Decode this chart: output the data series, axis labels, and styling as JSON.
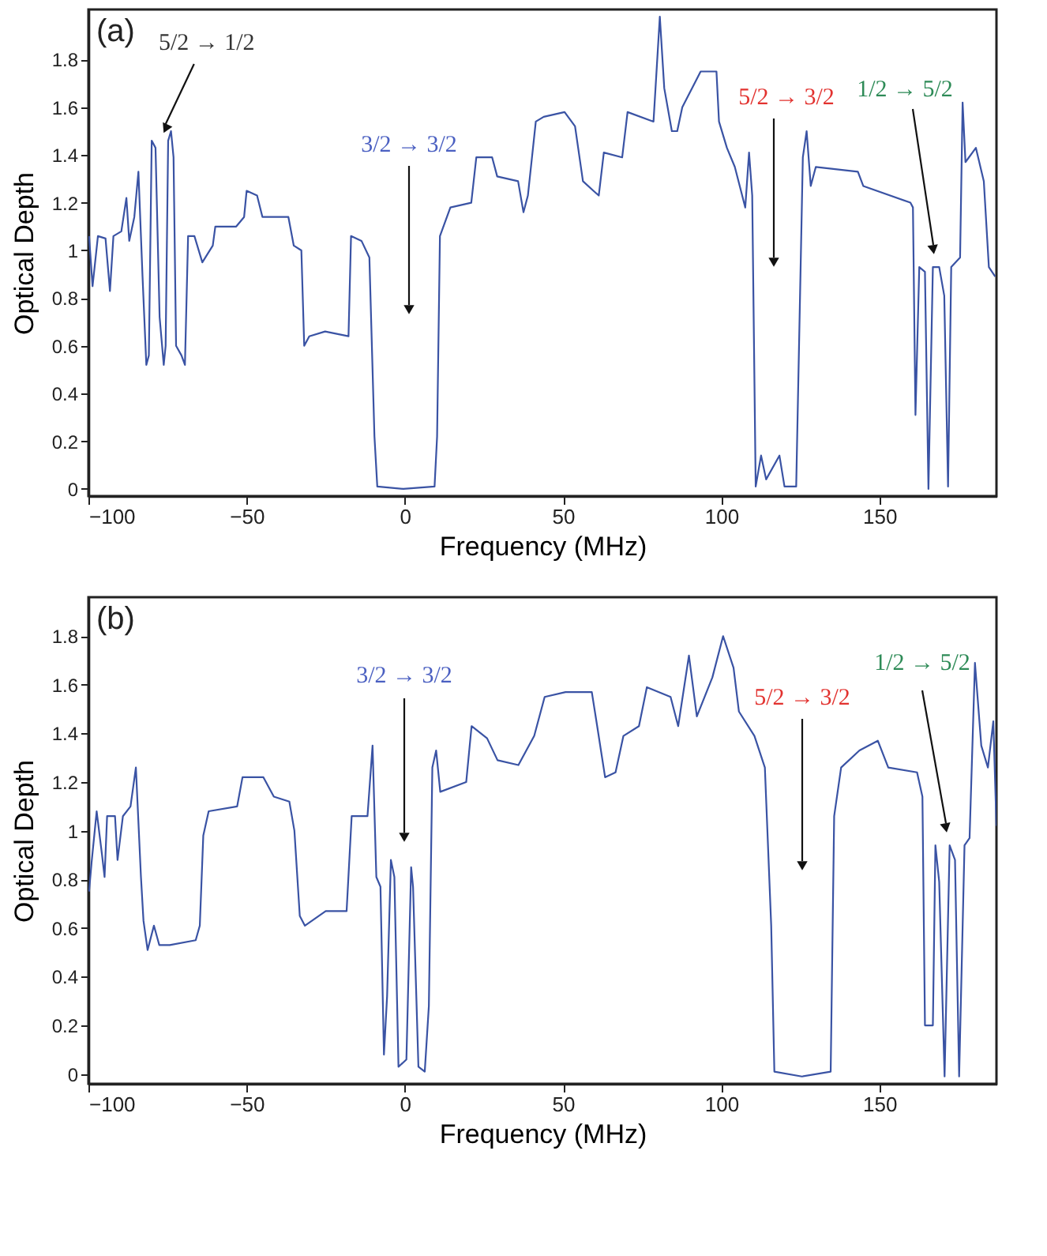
{
  "chart_data": [
    {
      "type": "line",
      "xlabel": "Frequency (MHz)",
      "ylabel": "Optical Depth",
      "xlim": [
        -100,
        187
      ],
      "ylim": [
        -0.03,
        2.01
      ],
      "xticks": [
        -100,
        -50,
        0,
        50,
        100,
        150
      ],
      "yticks": [
        0,
        0.2,
        0.4,
        0.6,
        0.8,
        1,
        1.2,
        1.4,
        1.6,
        1.8
      ],
      "grid": false,
      "x": [
        -99.8,
        -98.7,
        -97.0,
        -94.6,
        -93.2,
        -92.1,
        -89.6,
        -88.0,
        -87.1,
        -85.5,
        -84.2,
        -82.9,
        -81.7,
        -80.9,
        -80.0,
        -78.8,
        -77.5,
        -76.2,
        -75.6,
        -74.8,
        -73.9,
        -73.1,
        -72.3,
        -70.6,
        -69.5,
        -68.5,
        -66.5,
        -64.0,
        -60.7,
        -59.9,
        -53.3,
        -50.8,
        -50.0,
        -46.7,
        -45.0,
        -36.8,
        -35.1,
        -32.7,
        -31.8,
        -30.2,
        -25.2,
        -17.8,
        -17.0,
        -13.7,
        -11.2,
        -9.6,
        -8.7,
        -0.5,
        9.4,
        10.2,
        11.1,
        14.4,
        21.0,
        22.6,
        27.6,
        29.2,
        35.8,
        37.5,
        38.9,
        41.4,
        43.9,
        50.5,
        53.8,
        56.3,
        59.6,
        61.3,
        62.9,
        68.7,
        70.4,
        78.6,
        80.6,
        82.0,
        84.4,
        86.1,
        87.7,
        93.5,
        98.5,
        99.3,
        101.8,
        104.3,
        107.6,
        108.8,
        109.8,
        110.9,
        112.6,
        114.2,
        118.4,
        120.0,
        123.7,
        125.8,
        127.0,
        128.3,
        129.9,
        143.2,
        144.9,
        159.8,
        160.6,
        161.4,
        162.6,
        164.4,
        165.5,
        166.9,
        168.9,
        170.5,
        171.7,
        172.7,
        175.5,
        176.3,
        177.2,
        180.5,
        183.0,
        184.6,
        186.6
      ],
      "series": [
        {
          "color": "#3a53a4",
          "values": [
            1.06,
            0.85,
            1.06,
            1.05,
            0.83,
            1.06,
            1.08,
            1.22,
            1.04,
            1.14,
            1.33,
            0.89,
            0.52,
            0.56,
            1.46,
            1.43,
            0.72,
            0.52,
            0.6,
            1.46,
            1.5,
            1.39,
            0.6,
            0.56,
            0.52,
            1.06,
            1.06,
            0.95,
            1.02,
            1.1,
            1.1,
            1.14,
            1.25,
            1.23,
            1.14,
            1.14,
            1.02,
            1.0,
            0.6,
            0.64,
            0.66,
            0.64,
            1.06,
            1.04,
            0.97,
            0.22,
            0.01,
            0.0,
            0.01,
            0.22,
            1.06,
            1.18,
            1.2,
            1.39,
            1.39,
            1.31,
            1.29,
            1.16,
            1.23,
            1.54,
            1.56,
            1.58,
            1.52,
            1.29,
            1.25,
            1.23,
            1.41,
            1.39,
            1.58,
            1.54,
            1.98,
            1.68,
            1.5,
            1.5,
            1.6,
            1.75,
            1.75,
            1.54,
            1.43,
            1.35,
            1.18,
            1.41,
            1.23,
            0.01,
            0.14,
            0.04,
            0.14,
            0.01,
            0.01,
            1.39,
            1.5,
            1.27,
            1.35,
            1.33,
            1.27,
            1.2,
            1.18,
            0.31,
            0.93,
            0.91,
            0.0,
            0.93,
            0.93,
            0.81,
            0.01,
            0.93,
            0.97,
            1.62,
            1.37,
            1.43,
            1.29,
            0.93,
            0.89
          ]
        }
      ],
      "annotations": [
        "(a)",
        {
          "text": "5/2 → 1/2",
          "x": -75.6,
          "y": 1.53
        },
        "3/2 → 3/2",
        "5/2 → 3/2",
        "1/2 → 5/2"
      ]
    },
    {
      "type": "line",
      "xlabel": "Frequency (MHz)",
      "ylabel": "Optical Depth",
      "xlim": [
        -100,
        187
      ],
      "ylim": [
        -0.04,
        1.96
      ],
      "xticks": [
        -100,
        -50,
        0,
        50,
        100,
        150
      ],
      "yticks": [
        0,
        0.2,
        0.4,
        0.6,
        0.8,
        1,
        1.2,
        1.4,
        1.6,
        1.8
      ],
      "grid": false,
      "x": [
        -99.8,
        -99.0,
        -97.4,
        -95.7,
        -94.9,
        -94.1,
        -91.6,
        -90.8,
        -89.1,
        -86.7,
        -85.0,
        -83.4,
        -82.6,
        -81.3,
        -79.3,
        -77.6,
        -74.3,
        -66.1,
        -64.8,
        -63.7,
        -62.0,
        -53.0,
        -51.3,
        -44.7,
        -41.4,
        -36.5,
        -34.9,
        -33.2,
        -31.6,
        -25.0,
        -18.4,
        -16.8,
        -11.8,
        -10.2,
        -9.0,
        -7.7,
        -6.6,
        -5.6,
        -4.4,
        -3.3,
        -2.0,
        0.5,
        2.0,
        2.6,
        4.3,
        6.3,
        7.6,
        8.7,
        9.9,
        11.2,
        19.4,
        21.1,
        26.0,
        29.3,
        35.9,
        40.9,
        44.2,
        50.8,
        59.1,
        60.8,
        63.3,
        66.6,
        69.1,
        74.0,
        76.5,
        84.0,
        86.4,
        89.8,
        92.3,
        97.2,
        100.6,
        103.9,
        105.6,
        110.5,
        113.8,
        115.8,
        116.8,
        125.5,
        134.6,
        135.7,
        137.9,
        143.7,
        149.5,
        152.8,
        161.9,
        163.6,
        164.4,
        166.9,
        167.7,
        168.9,
        170.6,
        172.2,
        173.9,
        175.2,
        176.9,
        178.5,
        180.2,
        182.2,
        184.3,
        186.0,
        187.0
      ],
      "series": [
        {
          "color": "#3a53a4",
          "values": [
            0.75,
            0.87,
            1.08,
            0.9,
            0.81,
            1.06,
            1.06,
            0.88,
            1.06,
            1.1,
            1.26,
            0.81,
            0.63,
            0.51,
            0.61,
            0.53,
            0.53,
            0.55,
            0.61,
            0.98,
            1.08,
            1.1,
            1.22,
            1.22,
            1.14,
            1.12,
            1.0,
            0.65,
            0.61,
            0.67,
            0.67,
            1.06,
            1.06,
            1.35,
            0.81,
            0.77,
            0.08,
            0.32,
            0.88,
            0.81,
            0.03,
            0.06,
            0.85,
            0.77,
            0.03,
            0.01,
            0.28,
            1.26,
            1.33,
            1.16,
            1.2,
            1.43,
            1.38,
            1.29,
            1.27,
            1.39,
            1.55,
            1.57,
            1.57,
            1.43,
            1.22,
            1.24,
            1.39,
            1.43,
            1.59,
            1.55,
            1.43,
            1.72,
            1.47,
            1.63,
            1.8,
            1.67,
            1.49,
            1.39,
            1.26,
            0.61,
            0.01,
            -0.01,
            0.01,
            1.06,
            1.26,
            1.33,
            1.37,
            1.26,
            1.24,
            1.14,
            0.2,
            0.2,
            0.94,
            0.79,
            -0.01,
            0.94,
            0.88,
            -0.01,
            0.94,
            0.97,
            1.69,
            1.35,
            1.26,
            1.45,
            1.02
          ]
        }
      ],
      "annotations": [
        "(b)",
        "3/2 → 3/2",
        "5/2 → 3/2",
        "1/2 → 5/2"
      ]
    }
  ]
}
